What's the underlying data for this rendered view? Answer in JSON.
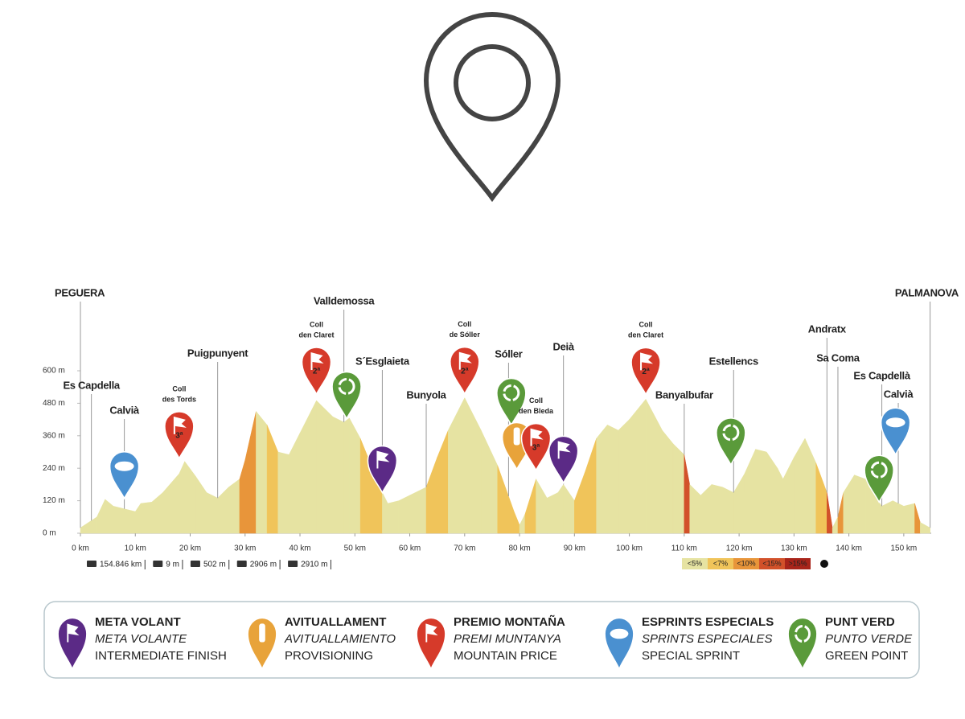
{
  "chart_data": {
    "type": "area",
    "x": [
      0,
      3,
      4.5,
      6,
      8,
      10,
      11,
      13,
      15,
      18,
      19,
      21,
      23,
      25,
      27,
      29,
      30,
      32,
      34,
      36,
      38,
      40,
      43,
      46,
      48,
      49,
      51,
      53,
      55,
      56,
      58,
      60,
      63,
      65,
      67,
      70,
      73,
      76,
      79,
      80,
      81,
      83,
      85,
      87,
      88,
      90,
      92,
      94,
      96,
      98,
      100,
      103,
      106,
      108,
      110,
      111,
      113,
      115,
      117,
      119,
      121,
      123,
      125,
      127,
      128,
      130,
      132,
      134,
      136,
      137,
      138,
      139,
      141,
      143,
      145,
      146,
      148,
      150,
      152,
      153,
      154.8
    ],
    "values": [
      20,
      60,
      125,
      100,
      90,
      80,
      110,
      115,
      150,
      220,
      265,
      210,
      150,
      130,
      170,
      200,
      270,
      450,
      400,
      300,
      290,
      370,
      490,
      430,
      410,
      425,
      350,
      250,
      150,
      110,
      120,
      140,
      170,
      280,
      380,
      500,
      380,
      250,
      80,
      30,
      70,
      200,
      130,
      150,
      180,
      120,
      230,
      350,
      400,
      380,
      420,
      495,
      380,
      330,
      290,
      180,
      140,
      180,
      170,
      150,
      220,
      310,
      300,
      240,
      200,
      280,
      350,
      260,
      150,
      20,
      60,
      150,
      215,
      200,
      130,
      100,
      120,
      100,
      110,
      40,
      20
    ],
    "xlim": [
      0,
      155
    ],
    "xticks": [
      {
        "value": 0,
        "label": "0 km"
      },
      {
        "value": 10,
        "label": "10 km"
      },
      {
        "value": 20,
        "label": "20 km"
      },
      {
        "value": 30,
        "label": "30 km"
      },
      {
        "value": 40,
        "label": "40 km"
      },
      {
        "value": 50,
        "label": "50 km"
      },
      {
        "value": 60,
        "label": "60 km"
      },
      {
        "value": 70,
        "label": "70 km"
      },
      {
        "value": 80,
        "label": "80 km"
      },
      {
        "value": 90,
        "label": "90 km"
      },
      {
        "value": 100,
        "label": "100 km"
      },
      {
        "value": 110,
        "label": "110 km"
      },
      {
        "value": 120,
        "label": "120 km"
      },
      {
        "value": 130,
        "label": "130 km"
      },
      {
        "value": 140,
        "label": "140 km"
      },
      {
        "value": 150,
        "label": "150 km"
      }
    ],
    "ylim": [
      0,
      600
    ],
    "yticks": [
      {
        "value": 0,
        "label": "0 m"
      },
      {
        "value": 120,
        "label": "120 m"
      },
      {
        "value": 240,
        "label": "240 m"
      },
      {
        "value": 360,
        "label": "360 m"
      },
      {
        "value": 480,
        "label": "480 m"
      },
      {
        "value": 600,
        "label": "600 m"
      }
    ],
    "gradient": [
      {
        "label": "<5%",
        "color": "#e6e3a2"
      },
      {
        "label": "<7%",
        "color": "#f0c45a"
      },
      {
        "label": "<10%",
        "color": "#e8953a"
      },
      {
        "label": "<15%",
        "color": "#d2512a"
      },
      {
        "label": ">15%",
        "color": "#a8241a"
      }
    ],
    "places": [
      {
        "label": "PEGUERA",
        "x": 0
      },
      {
        "label": "Es Capdella",
        "x": 2
      },
      {
        "label": "Calvià",
        "x": 8
      },
      {
        "label": "Puigpunyent",
        "x": 25
      },
      {
        "label": "Valldemossa",
        "x": 48
      },
      {
        "label": "S´Esglaieta",
        "x": 55
      },
      {
        "label": "Bunyola",
        "x": 63
      },
      {
        "label": "Sóller",
        "x": 78
      },
      {
        "label": "Deià",
        "x": 88
      },
      {
        "label": "Banyalbufar",
        "x": 110
      },
      {
        "label": "Estellencs",
        "x": 119
      },
      {
        "label": "Andratx",
        "x": 136
      },
      {
        "label": "Sa Coma",
        "x": 138
      },
      {
        "label": "Es Capdellà",
        "x": 146
      },
      {
        "label": "Calvià",
        "x": 149
      },
      {
        "label": "PALMANOVA",
        "x": 154.8
      }
    ],
    "markers": [
      {
        "kind": "sprint",
        "x": 8
      },
      {
        "kind": "mountain",
        "x": 18,
        "label": "3ª",
        "name": [
          "Coll",
          "des Tords"
        ]
      },
      {
        "kind": "mountain",
        "x": 43,
        "label": "2ª",
        "name": [
          "Coll",
          "den Claret"
        ]
      },
      {
        "kind": "green",
        "x": 48.5
      },
      {
        "kind": "meta",
        "x": 55
      },
      {
        "kind": "mountain",
        "x": 70,
        "label": "2ª",
        "name": [
          "Coll",
          "de Sóller"
        ]
      },
      {
        "kind": "green",
        "x": 78.5
      },
      {
        "kind": "feed",
        "x": 79.5
      },
      {
        "kind": "mountain",
        "x": 83,
        "label": "3ª",
        "name": [
          "Coll",
          "den Bleda"
        ]
      },
      {
        "kind": "meta",
        "x": 88
      },
      {
        "kind": "mountain",
        "x": 103,
        "label": "2ª",
        "name": [
          "Coll",
          "den Claret"
        ]
      },
      {
        "kind": "green",
        "x": 118.5
      },
      {
        "kind": "green",
        "x": 145.5
      },
      {
        "kind": "sprint",
        "x": 148.5
      }
    ],
    "marker_colors": {
      "meta": "#5b2a86",
      "feed": "#e8a33a",
      "mountain": "#d63a2a",
      "sprint": "#4a90d0",
      "green": "#5a9a3a"
    }
  },
  "stats": [
    "154.846 km",
    "9 m",
    "502 m",
    "2906 m",
    "2910 m"
  ],
  "legend": [
    {
      "kind": "meta",
      "lines": [
        "META VOLANT",
        "META VOLANTE",
        "INTERMEDIATE FINISH"
      ]
    },
    {
      "kind": "feed",
      "lines": [
        "AVITUALLAMENT",
        "AVITUALLAMIENTO",
        "PROVISIONING"
      ]
    },
    {
      "kind": "mountain",
      "lines": [
        "PREMIO MONTAÑA",
        "PREMI MUNTANYA",
        "MOUNTAIN PRICE"
      ]
    },
    {
      "kind": "sprint",
      "lines": [
        "ESPRINTS ESPECIALS",
        "SPRINTS ESPECIALES",
        "SPECIAL SPRINT"
      ]
    },
    {
      "kind": "green",
      "lines": [
        "PUNT VERD",
        "PUNTO VERDE",
        "GREEN POINT"
      ]
    }
  ]
}
